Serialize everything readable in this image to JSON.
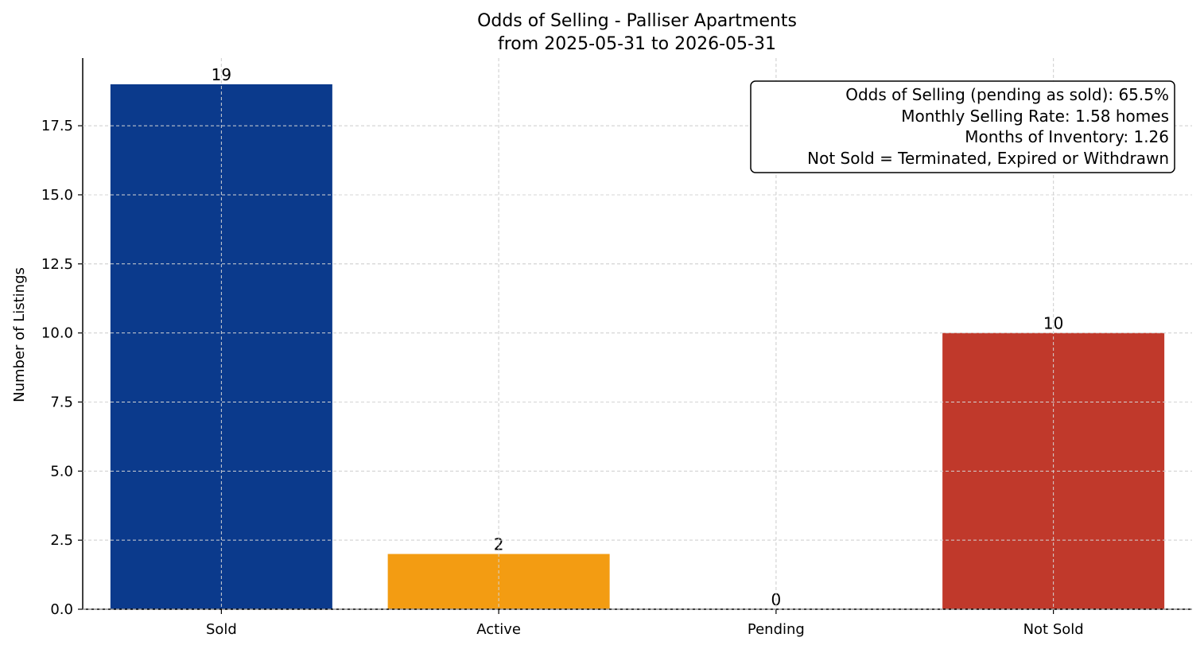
{
  "chart_data": {
    "type": "bar",
    "title": "Odds of Selling - Palliser Apartments",
    "subtitle": "from 2025-05-31 to 2026-05-31",
    "xlabel": "",
    "ylabel": "Number of Listings",
    "categories": [
      "Sold",
      "Active",
      "Pending",
      "Not Sold"
    ],
    "values": [
      19,
      2,
      0,
      10
    ],
    "data_labels": [
      "19",
      "2",
      "0",
      "10"
    ],
    "colors": [
      "#0b3a8c",
      "#f39c12",
      "#2ecc71",
      "#c0392b"
    ],
    "ylim": [
      0,
      19.95
    ],
    "yticks": [
      0.0,
      2.5,
      5.0,
      7.5,
      10.0,
      12.5,
      15.0,
      17.5
    ],
    "ytick_labels": [
      "0.0",
      "2.5",
      "5.0",
      "7.5",
      "10.0",
      "12.5",
      "15.0",
      "17.5"
    ],
    "grid": true,
    "annotation": {
      "placement": "top-right",
      "lines": [
        "Odds of Selling (pending as sold): 65.5%",
        "Monthly Selling Rate: 1.58 homes",
        "Months of Inventory: 1.26",
        "Not Sold = Terminated, Expired or Withdrawn"
      ]
    }
  }
}
